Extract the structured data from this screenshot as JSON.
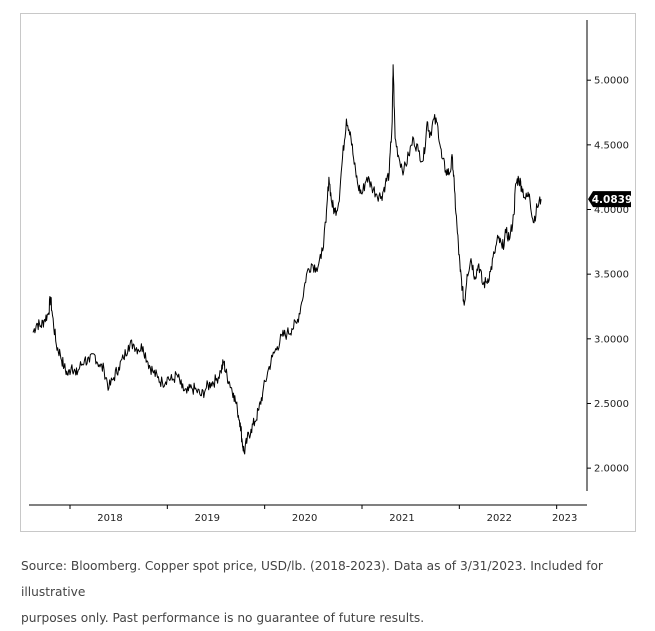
{
  "chart_data": {
    "type": "line",
    "title": "",
    "xlabel": "",
    "ylabel": "",
    "x_tick_labels": [
      "2018",
      "2019",
      "2020",
      "2021",
      "2022",
      "2023"
    ],
    "x_tick_values": [
      2018,
      2019,
      2020,
      2021,
      2022,
      2023
    ],
    "y_tick_labels": [
      "2.0000",
      "2.5000",
      "3.0000",
      "3.5000",
      "4.0000",
      "4.5000",
      "5.0000"
    ],
    "y_tick_values": [
      2.0,
      2.5,
      3.0,
      3.5,
      4.0,
      4.5,
      5.0
    ],
    "xlim": [
      2017.62,
      2023.25
    ],
    "ylim": [
      1.8,
      5.45
    ],
    "grid": false,
    "y_axis_position": "right",
    "last_value_label": "4.0839",
    "series": [
      {
        "color": "#000000",
        "points": [
          [
            2017.62,
            3.05
          ],
          [
            2017.66,
            3.12
          ],
          [
            2017.7,
            3.1
          ],
          [
            2017.74,
            3.15
          ],
          [
            2017.78,
            3.2
          ],
          [
            2017.8,
            3.32
          ],
          [
            2017.82,
            3.18
          ],
          [
            2017.86,
            2.95
          ],
          [
            2017.9,
            2.88
          ],
          [
            2017.94,
            2.78
          ],
          [
            2017.98,
            2.72
          ],
          [
            2018.02,
            2.8
          ],
          [
            2018.06,
            2.72
          ],
          [
            2018.1,
            2.78
          ],
          [
            2018.15,
            2.84
          ],
          [
            2018.2,
            2.82
          ],
          [
            2018.25,
            2.88
          ],
          [
            2018.3,
            2.8
          ],
          [
            2018.35,
            2.76
          ],
          [
            2018.4,
            2.62
          ],
          [
            2018.45,
            2.7
          ],
          [
            2018.5,
            2.78
          ],
          [
            2018.55,
            2.85
          ],
          [
            2018.6,
            2.95
          ],
          [
            2018.65,
            2.96
          ],
          [
            2018.7,
            2.92
          ],
          [
            2018.75,
            2.94
          ],
          [
            2018.8,
            2.82
          ],
          [
            2018.85,
            2.75
          ],
          [
            2018.9,
            2.7
          ],
          [
            2018.95,
            2.66
          ],
          [
            2019.0,
            2.7
          ],
          [
            2019.05,
            2.68
          ],
          [
            2019.1,
            2.72
          ],
          [
            2019.15,
            2.62
          ],
          [
            2019.2,
            2.58
          ],
          [
            2019.25,
            2.62
          ],
          [
            2019.3,
            2.6
          ],
          [
            2019.35,
            2.56
          ],
          [
            2019.4,
            2.62
          ],
          [
            2019.45,
            2.66
          ],
          [
            2019.5,
            2.68
          ],
          [
            2019.55,
            2.75
          ],
          [
            2019.58,
            2.82
          ],
          [
            2019.6,
            2.74
          ],
          [
            2019.64,
            2.66
          ],
          [
            2019.68,
            2.58
          ],
          [
            2019.72,
            2.45
          ],
          [
            2019.75,
            2.35
          ],
          [
            2019.77,
            2.2
          ],
          [
            2019.79,
            2.12
          ],
          [
            2019.82,
            2.22
          ],
          [
            2019.86,
            2.3
          ],
          [
            2019.9,
            2.36
          ],
          [
            2019.94,
            2.45
          ],
          [
            2019.98,
            2.58
          ],
          [
            2020.03,
            2.74
          ],
          [
            2020.08,
            2.86
          ],
          [
            2020.13,
            2.94
          ],
          [
            2020.18,
            3.02
          ],
          [
            2020.23,
            3.04
          ],
          [
            2020.28,
            3.08
          ],
          [
            2020.33,
            3.12
          ],
          [
            2020.38,
            3.28
          ],
          [
            2020.43,
            3.5
          ],
          [
            2020.48,
            3.58
          ],
          [
            2020.53,
            3.55
          ],
          [
            2020.58,
            3.62
          ],
          [
            2020.63,
            3.9
          ],
          [
            2020.66,
            4.25
          ],
          [
            2020.69,
            4.05
          ],
          [
            2020.72,
            3.98
          ],
          [
            2020.76,
            4.05
          ],
          [
            2020.8,
            4.4
          ],
          [
            2020.84,
            4.7
          ],
          [
            2020.88,
            4.6
          ],
          [
            2020.92,
            4.35
          ],
          [
            2020.96,
            4.18
          ],
          [
            2021.0,
            4.12
          ],
          [
            2021.05,
            4.25
          ],
          [
            2021.1,
            4.18
          ],
          [
            2021.15,
            4.12
          ],
          [
            2021.2,
            4.1
          ],
          [
            2021.24,
            4.2
          ],
          [
            2021.28,
            4.28
          ],
          [
            2021.31,
            4.68
          ],
          [
            2021.32,
            5.12
          ],
          [
            2021.34,
            4.55
          ],
          [
            2021.38,
            4.4
          ],
          [
            2021.43,
            4.3
          ],
          [
            2021.48,
            4.42
          ],
          [
            2021.53,
            4.55
          ],
          [
            2021.58,
            4.45
          ],
          [
            2021.63,
            4.38
          ],
          [
            2021.67,
            4.68
          ],
          [
            2021.7,
            4.58
          ],
          [
            2021.74,
            4.7
          ],
          [
            2021.78,
            4.64
          ],
          [
            2021.82,
            4.4
          ],
          [
            2021.86,
            4.3
          ],
          [
            2021.9,
            4.28
          ],
          [
            2021.93,
            4.4
          ],
          [
            2021.95,
            4.15
          ],
          [
            2021.98,
            3.82
          ],
          [
            2022.01,
            3.52
          ],
          [
            2022.03,
            3.4
          ],
          [
            2022.05,
            3.26
          ],
          [
            2022.08,
            3.5
          ],
          [
            2022.12,
            3.62
          ],
          [
            2022.16,
            3.48
          ],
          [
            2022.2,
            3.58
          ],
          [
            2022.24,
            3.42
          ],
          [
            2022.28,
            3.44
          ],
          [
            2022.32,
            3.52
          ],
          [
            2022.36,
            3.66
          ],
          [
            2022.4,
            3.78
          ],
          [
            2022.44,
            3.7
          ],
          [
            2022.48,
            3.82
          ],
          [
            2022.52,
            3.78
          ],
          [
            2022.56,
            3.96
          ],
          [
            2022.58,
            4.2
          ],
          [
            2022.61,
            4.24
          ],
          [
            2022.64,
            4.18
          ],
          [
            2022.68,
            4.08
          ],
          [
            2022.72,
            4.12
          ],
          [
            2022.76,
            3.9
          ],
          [
            2022.8,
            4.02
          ],
          [
            2022.84,
            4.08
          ]
        ]
      }
    ]
  },
  "caption": {
    "line1": "Source: Bloomberg. Copper spot price, USD/lb. (2018-2023). Data as of 3/31/2023. Included for illustrative",
    "line2": "purposes only. Past performance is no guarantee of future results."
  }
}
